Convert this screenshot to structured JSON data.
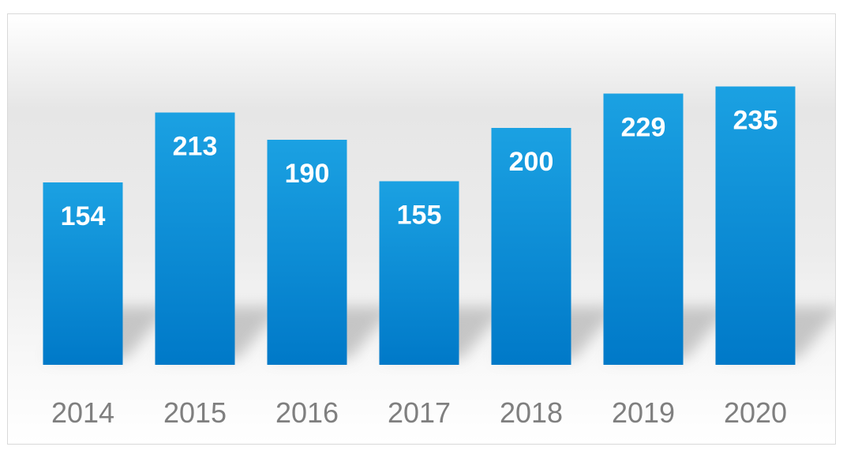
{
  "chart_data": {
    "type": "bar",
    "categories": [
      "2014",
      "2015",
      "2016",
      "2017",
      "2018",
      "2019",
      "2020"
    ],
    "values": [
      154,
      213,
      190,
      155,
      200,
      229,
      235
    ],
    "title": "",
    "xlabel": "",
    "ylabel": "",
    "ylim": [
      0,
      245
    ],
    "grid": false,
    "legend": "none",
    "data_labels": "inside-top",
    "colors": {
      "bar_top": "#1ba1e2",
      "bar_bottom": "#0079c8",
      "value_label": "#ffffff",
      "tick_label": "#7f7f7f",
      "background_gray": "#e3e3e3",
      "frame_border": "#d9d9d9"
    }
  }
}
